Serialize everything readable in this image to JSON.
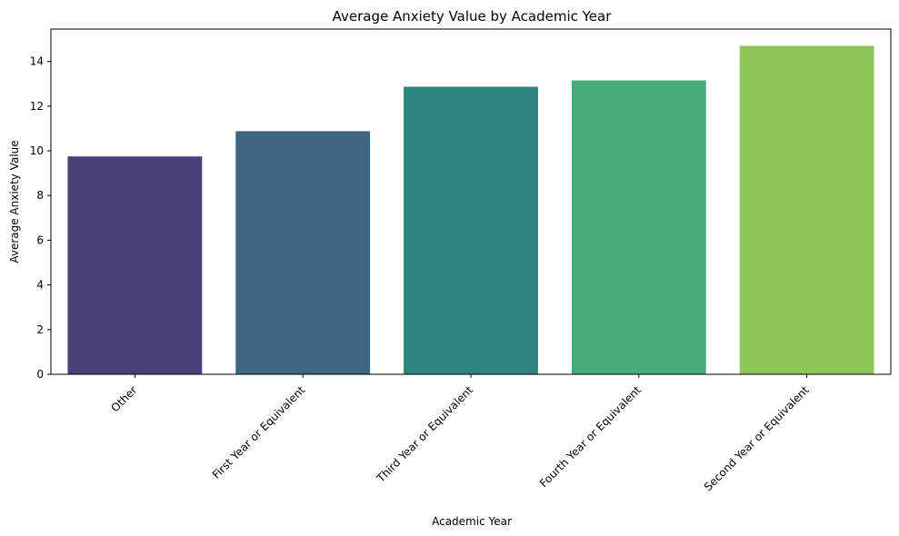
{
  "chart_data": {
    "type": "bar",
    "title": "Average Anxiety Value by Academic Year",
    "xlabel": "Academic Year",
    "ylabel": "Average Anxiety Value",
    "categories": [
      "Other",
      "First Year or Equivalent",
      "Third Year or Equivalent",
      "Fourth Year or Equivalent",
      "Second Year or Equivalent"
    ],
    "values": [
      9.75,
      10.88,
      12.87,
      13.15,
      14.7
    ],
    "colors": [
      "#4b4179",
      "#3c6681",
      "#2e847e",
      "#47a979",
      "#8fc558"
    ],
    "ylim": [
      0,
      15.45
    ],
    "yticks": [
      0,
      2,
      4,
      6,
      8,
      10,
      12,
      14
    ],
    "grid": false,
    "legend": "none"
  }
}
